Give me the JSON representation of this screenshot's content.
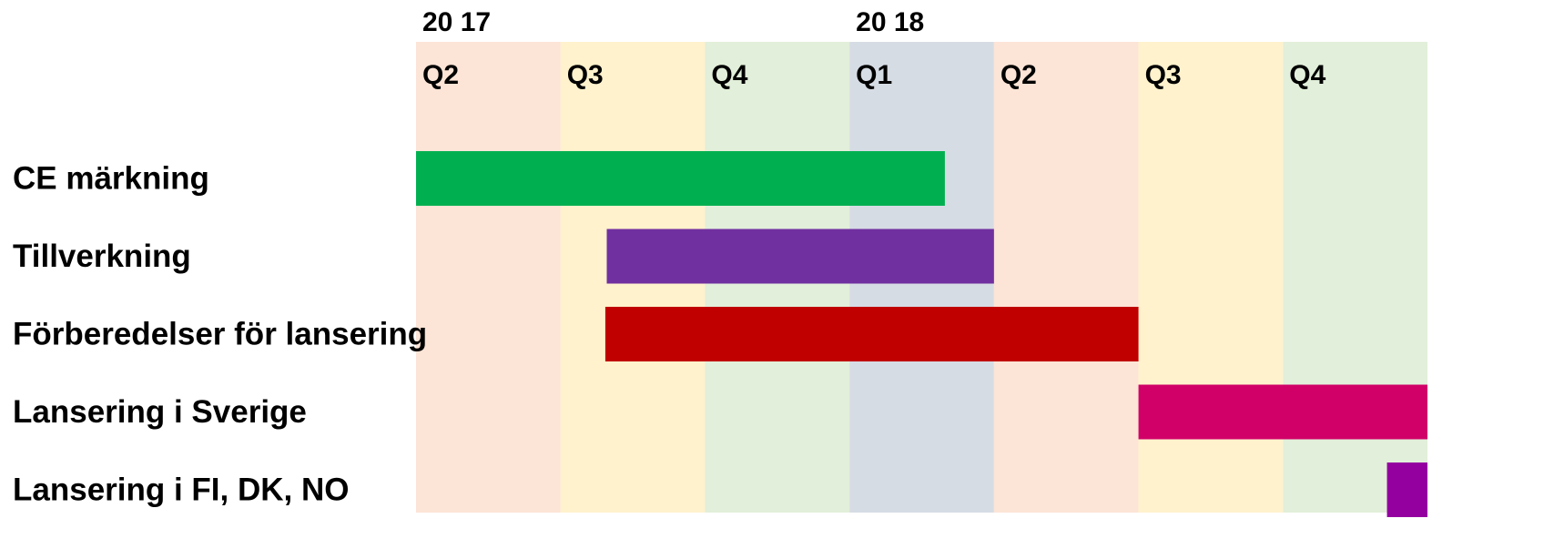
{
  "chart_data": {
    "type": "gantt",
    "quarters": [
      {
        "label": "Q2",
        "year": "20 17",
        "color": "#fce4d6"
      },
      {
        "label": "Q3",
        "color": "#fff2cc"
      },
      {
        "label": "Q4",
        "color": "#e2efda"
      },
      {
        "label": "Q1",
        "year": "20 18",
        "color": "#d6dce4"
      },
      {
        "label": "Q2",
        "color": "#fce4d6"
      },
      {
        "label": "Q3",
        "color": "#fff2cc"
      },
      {
        "label": "Q4",
        "color": "#e2efda"
      }
    ],
    "xlim": [
      0,
      7
    ],
    "tasks": [
      {
        "name": "CE märkning",
        "start": 0,
        "end": 3.66,
        "color": "#00b050"
      },
      {
        "name": "Tillverkning",
        "start": 1.32,
        "end": 4,
        "color": "#7030a0"
      },
      {
        "name": "Förberedelser för lansering",
        "start": 1.31,
        "end": 5,
        "color": "#c00000"
      },
      {
        "name": "Lansering i Sverige",
        "start": 5,
        "end": 7,
        "color": "#d00068"
      },
      {
        "name": "Lansering i FI, DK, NO",
        "start": 6.72,
        "end": 7,
        "color": "#9400a0"
      }
    ]
  }
}
